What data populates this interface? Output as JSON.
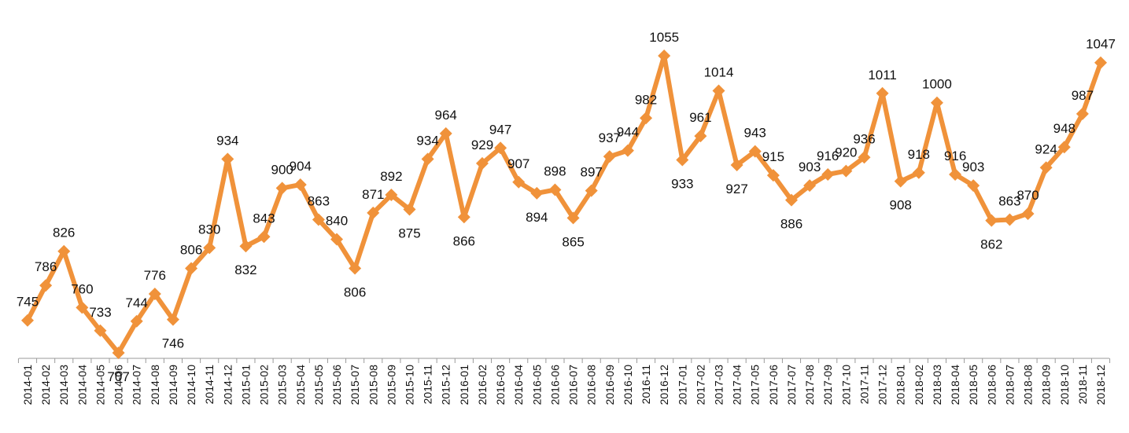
{
  "chart_data": {
    "type": "line",
    "title": "",
    "xlabel": "",
    "ylabel": "",
    "ylim": [
      700,
      1100
    ],
    "grid": false,
    "legend": "none",
    "line_color": "#F0923A",
    "marker": "diamond",
    "categories": [
      "2014-01",
      "2014-02",
      "2014-03",
      "2014-04",
      "2014-05",
      "2014-06",
      "2014-07",
      "2014-08",
      "2014-09",
      "2014-10",
      "2014-11",
      "2014-12",
      "2015-01",
      "2015-02",
      "2015-03",
      "2015-04",
      "2015-05",
      "2015-06",
      "2015-07",
      "2015-08",
      "2015-09",
      "2015-10",
      "2015-11",
      "2015-12",
      "2016-01",
      "2016-02",
      "2016-03",
      "2016-04",
      "2016-05",
      "2016-06",
      "2016-07",
      "2016-08",
      "2016-09",
      "2016-10",
      "2016-11",
      "2016-12",
      "2017-01",
      "2017-02",
      "2017-03",
      "2017-04",
      "2017-05",
      "2017-06",
      "2017-07",
      "2017-08",
      "2017-09",
      "2017-10",
      "2017-11",
      "2017-12",
      "2018-01",
      "2018-02",
      "2018-03",
      "2018-04",
      "2018-05",
      "2018-06",
      "2018-07",
      "2018-08",
      "2018-09",
      "2018-10",
      "2018-11",
      "2018-12"
    ],
    "values": [
      745,
      786,
      826,
      760,
      733,
      707,
      744,
      776,
      746,
      806,
      830,
      934,
      832,
      843,
      900,
      904,
      863,
      840,
      806,
      871,
      892,
      875,
      934,
      964,
      866,
      929,
      947,
      907,
      894,
      898,
      865,
      897,
      937,
      944,
      982,
      1055,
      933,
      961,
      1014,
      927,
      943,
      915,
      886,
      903,
      916,
      920,
      936,
      1011,
      908,
      918,
      1000,
      916,
      903,
      862,
      863,
      870,
      924,
      948,
      987,
      1047
    ]
  }
}
